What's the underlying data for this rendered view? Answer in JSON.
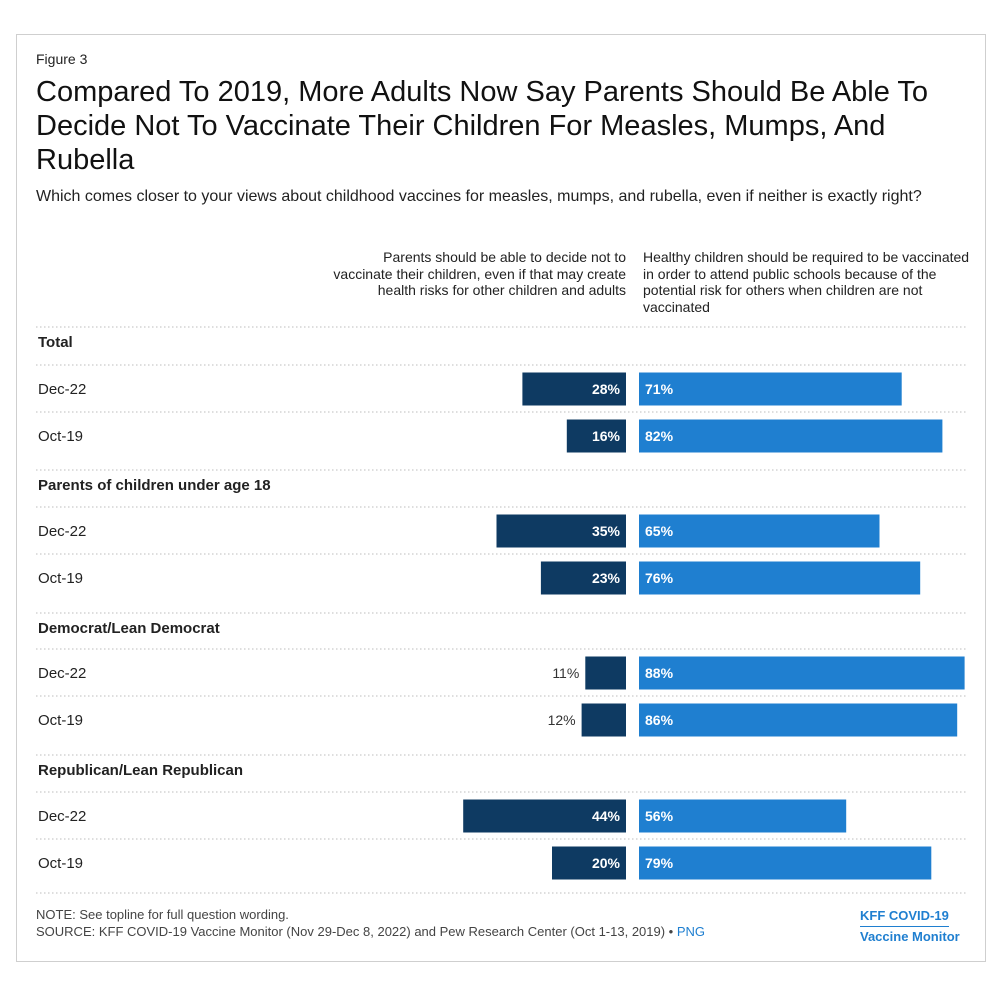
{
  "figure_label": "Figure 3",
  "title": "Compared To 2019, More Adults Now Say Parents Should Be Able To Decide Not To Vaccinate Their Children For Measles, Mumps, And Rubella",
  "subtitle": "Which comes closer to your views about childhood vaccines for measles, mumps, and rubella, even if neither is exactly right?",
  "note": "NOTE: See topline for full question wording.",
  "source": "SOURCE: KFF COVID-19 Vaccine Monitor (Nov 29-Dec 8, 2022) and Pew Research Center (Oct 1-13, 2019) •",
  "png_link": "PNG",
  "brand": {
    "line1": "KFF COVID-19",
    "line2": "Vaccine Monitor"
  },
  "chart_data": {
    "type": "bar",
    "orientation": "diverging-horizontal",
    "series": [
      {
        "name": "Parents should be able to decide not to vaccinate their children, even if that may create health risks for other children and adults",
        "color": "#0e3a62"
      },
      {
        "name": "Healthy children should be required to be vaccinated in order to attend public schools because of the potential risk for others when children are not vaccinated",
        "color": "#1f7fd0"
      }
    ],
    "groups": [
      {
        "name": "Total",
        "rows": [
          {
            "label": "Dec-22",
            "values": [
              28,
              71
            ]
          },
          {
            "label": "Oct-19",
            "values": [
              16,
              82
            ]
          }
        ]
      },
      {
        "name": "Parents of children under age 18",
        "rows": [
          {
            "label": "Dec-22",
            "values": [
              35,
              65
            ]
          },
          {
            "label": "Oct-19",
            "values": [
              23,
              76
            ]
          }
        ]
      },
      {
        "name": "Democrat/Lean Democrat",
        "rows": [
          {
            "label": "Dec-22",
            "values": [
              11,
              88
            ]
          },
          {
            "label": "Oct-19",
            "values": [
              12,
              86
            ]
          }
        ]
      },
      {
        "name": "Republican/Lean Republican",
        "rows": [
          {
            "label": "Dec-22",
            "values": [
              44,
              56
            ]
          },
          {
            "label": "Oct-19",
            "values": [
              20,
              79
            ]
          }
        ]
      }
    ],
    "value_suffix": "%"
  }
}
